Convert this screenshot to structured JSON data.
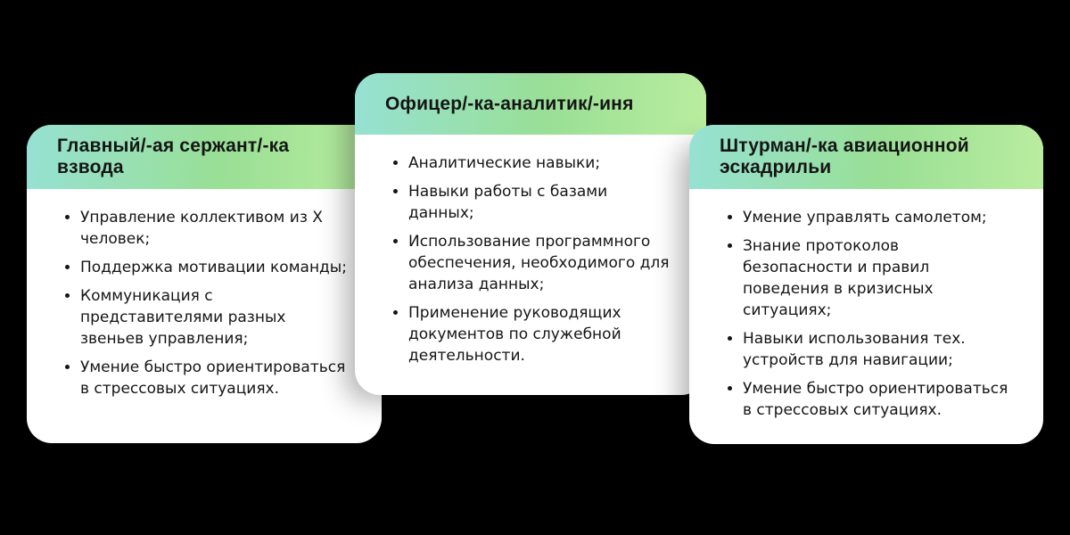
{
  "colors": {
    "background": "#000000",
    "card_bg": "#ffffff",
    "text": "#151515",
    "header_gradient_start": "#96e1d3",
    "header_gradient_mid": "#99df95",
    "header_gradient_end": "#b9ed9f"
  },
  "cards": [
    {
      "title": "Главный/-ая сержант/-ка взвода",
      "items": [
        "Управление коллективом из X человек;",
        "Поддержка мотивации команды;",
        "Коммуникация с представителями разных звеньев управления;",
        "Умение быстро ориентироваться в стрессовых ситуациях."
      ]
    },
    {
      "title": "Офицер/-ка-аналитик/-иня",
      "items": [
        "Аналитические навыки;",
        "Навыки работы с базами данных;",
        "Использование программного обеспечения, необходимого для анализа данных;",
        "Применение руководящих документов по служебной деятельности."
      ]
    },
    {
      "title": "Штурман/-ка авиационной эскадрильи",
      "items": [
        "Умение управлять самолетом;",
        "Знание протоколов безопасности и правил поведения в кризисных ситуациях;",
        "Навыки использования тех. устройств для навигации;",
        "Умение быстро ориентироваться в стрессовых ситуациях."
      ]
    }
  ]
}
